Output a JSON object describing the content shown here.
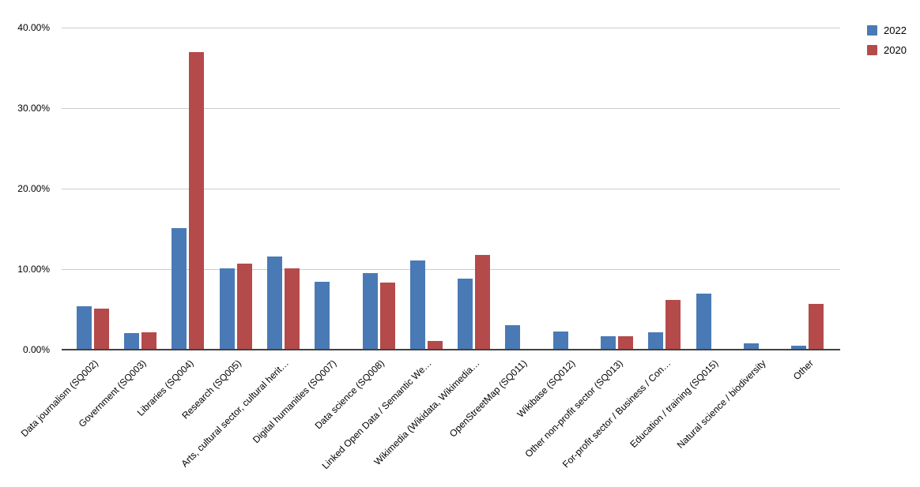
{
  "chart_data": {
    "type": "bar",
    "title": "",
    "xlabel": "",
    "ylabel": "",
    "grid": true,
    "legend_position": "top-right",
    "ylim": [
      0,
      40
    ],
    "y_tick_values": [
      0,
      10,
      20,
      30,
      40
    ],
    "y_tick_labels": [
      "0.00%",
      "10.00%",
      "20.00%",
      "30.00%",
      "40.00%"
    ],
    "categories": [
      "Data journalism (SQ002)",
      "Government (SQ003)",
      "Libraries (SQ004)",
      "Research (SQ005)",
      "Arts, cultural sector, cultural herit…",
      "Digital humanities (SQ007)",
      "Data science (SQ008)",
      "Linked Open Data / Semantic We…",
      "Wikimedia (Wikidata, Wikimedia…",
      "OpenStreetMap (SQ011)",
      "Wikibase (SQ012)",
      "Other non-profit sector (SQ013)",
      "For-profit sector / Business / Con…",
      "Education / training (SQ015)",
      "Natural science / biodiversity",
      "Other"
    ],
    "series": [
      {
        "name": "2022",
        "color": "#4a7ab5",
        "values": [
          5.4,
          2.1,
          15.1,
          10.1,
          11.6,
          8.4,
          9.5,
          11.1,
          8.8,
          3.0,
          2.3,
          1.7,
          2.2,
          7.0,
          0.8,
          0.5
        ]
      },
      {
        "name": "2020",
        "color": "#b54a4a",
        "values": [
          5.1,
          2.2,
          37.0,
          10.7,
          10.1,
          0,
          8.3,
          1.1,
          11.8,
          0,
          0,
          1.7,
          6.2,
          0,
          0,
          5.7
        ]
      }
    ]
  },
  "colors": {
    "background": "#ffffff",
    "gridline": "#cccccc",
    "axis_line": "#424242",
    "text": "#000000"
  }
}
